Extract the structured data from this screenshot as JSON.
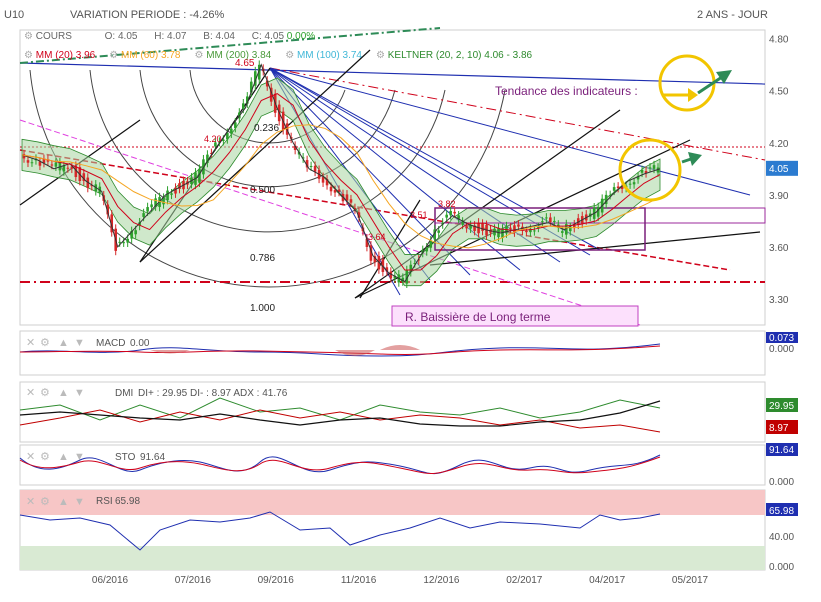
{
  "header": {
    "symbol": "U10",
    "variation": "VARIATION PERIODE : -4.26%",
    "period": "2 ANS - JOUR"
  },
  "quote": {
    "label": "COURS",
    "o": "O: 4.05",
    "h": "H: 4.07",
    "b": "B: 4.04",
    "c": "C: 4.05",
    "chg": "0.00%"
  },
  "indicators": [
    {
      "label": "MM (20)",
      "value": "3.96",
      "color": "#d0021b"
    },
    {
      "label": "MM (60)",
      "value": "3.78",
      "color": "#f5a623"
    },
    {
      "label": "MM (200)",
      "value": "3.84",
      "color": "#4a9a3a"
    },
    {
      "label": "MM (100)",
      "value": "3.74",
      "color": "#42b8d8"
    },
    {
      "label": "KELTNER (20, 2, 10)",
      "value": "4.06 - 3.86",
      "color": "#2d8a2d"
    }
  ],
  "annotations": {
    "tendance": "Tendance des indicateurs :",
    "bearish_channel": "R. Baissière de Long terme",
    "high_label": "4.65",
    "fib": [
      "0.236",
      "0.500",
      "0.786",
      "1.000"
    ],
    "levels_text": [
      "3.64",
      "3.82",
      "4.20",
      "3.51"
    ]
  },
  "panels": {
    "macd": {
      "label": "MACD",
      "value": "0.00",
      "badges": [
        "0.073",
        "0.000"
      ]
    },
    "dmi": {
      "label": "DMI",
      "text": "DI+ : 29.95 DI- : 8.97 ADX : 41.76",
      "badges": [
        "29.95",
        "8.97"
      ]
    },
    "sto": {
      "label": "STO",
      "value": "91.64",
      "badges": [
        "91.64",
        "0.000"
      ]
    },
    "rsi": {
      "label": "RSI",
      "value": "65.98",
      "badges": [
        "65.98",
        "40.00",
        "0.000"
      ]
    }
  },
  "colors": {
    "up_candle": "#2ca02c",
    "down_candle": "#d62728",
    "price_badge": "#2b7bd0",
    "dmi_plus": "#2e8b2e",
    "dmi_minus": "#c00000",
    "rsi_zone": "#f7c6c6",
    "rsi_low_zone": "#d9ead3"
  },
  "chart_data": {
    "type": "line",
    "title": "",
    "xlabel": "",
    "ylabel": "",
    "x_tick_labels": [
      "06/2016",
      "07/2016",
      "09/2016",
      "11/2016",
      "12/2016",
      "02/2017",
      "04/2017",
      "05/2017"
    ],
    "y_tick_labels": [
      "4.80",
      "4.50",
      "4.20",
      "3.90",
      "3.60",
      "3.30"
    ],
    "ylim": [
      3.15,
      4.85
    ],
    "series": [
      {
        "values": [
          4.13,
          4.1,
          4.05,
          4.08,
          3.98,
          3.92,
          3.6,
          3.7,
          3.8,
          3.9,
          3.95,
          4.0,
          4.15,
          4.28,
          4.4,
          4.65,
          4.4,
          4.2,
          4.05,
          4.0,
          3.9,
          3.8,
          3.55,
          3.45,
          3.4,
          3.55,
          3.7,
          3.78,
          3.73,
          3.7,
          3.68,
          3.7,
          3.72,
          3.74,
          3.7,
          3.75,
          3.8,
          3.9,
          3.98,
          4.02,
          4.05
        ]
      }
    ],
    "current_price": 4.05,
    "grid": false,
    "legend": "top-left"
  }
}
